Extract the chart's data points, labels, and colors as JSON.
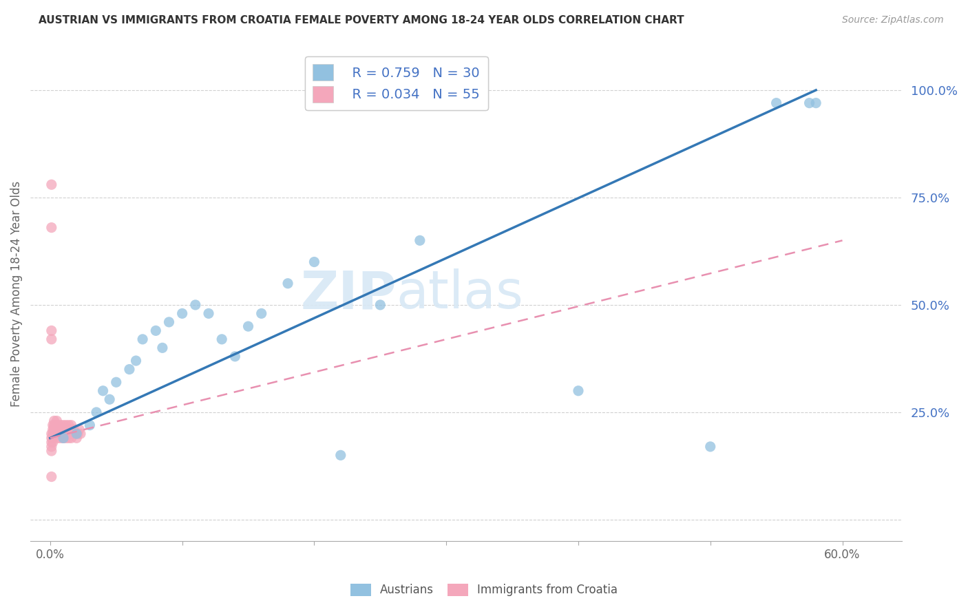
{
  "title": "AUSTRIAN VS IMMIGRANTS FROM CROATIA FEMALE POVERTY AMONG 18-24 YEAR OLDS CORRELATION CHART",
  "source": "Source: ZipAtlas.com",
  "ylabel": "Female Poverty Among 18-24 Year Olds",
  "right_yticks": [
    0.0,
    0.25,
    0.5,
    0.75,
    1.0
  ],
  "right_yticklabels": [
    "",
    "25.0%",
    "50.0%",
    "75.0%",
    "100.0%"
  ],
  "xtick_positions": [
    0.0,
    0.1,
    0.2,
    0.3,
    0.4,
    0.5,
    0.6
  ],
  "xticklabels": [
    "0.0%",
    "",
    "",
    "",
    "",
    "",
    "60.0%"
  ],
  "xlim": [
    -0.015,
    0.645
  ],
  "ylim": [
    -0.05,
    1.1
  ],
  "watermark": "ZIPatlas",
  "legend_r1": "R = 0.759",
  "legend_n1": "N = 30",
  "legend_r2": "R = 0.034",
  "legend_n2": "N = 55",
  "blue_dot_color": "#92c1e0",
  "pink_dot_color": "#f4a7bb",
  "blue_line_color": "#3478b5",
  "pink_line_color": "#e890b0",
  "grid_color": "#d0d0d0",
  "title_color": "#333333",
  "source_color": "#999999",
  "axis_label_color": "#666666",
  "right_axis_color": "#4472C4",
  "bottom_legend_color": "#555555",
  "legend1_label": "Austrians",
  "legend2_label": "Immigrants from Croatia",
  "austrians_x": [
    0.01,
    0.02,
    0.03,
    0.035,
    0.04,
    0.045,
    0.05,
    0.06,
    0.065,
    0.07,
    0.08,
    0.085,
    0.09,
    0.1,
    0.11,
    0.12,
    0.13,
    0.14,
    0.15,
    0.16,
    0.18,
    0.2,
    0.22,
    0.25,
    0.28,
    0.4,
    0.5,
    0.55,
    0.575,
    0.58
  ],
  "austrians_y": [
    0.19,
    0.2,
    0.22,
    0.25,
    0.3,
    0.28,
    0.32,
    0.35,
    0.37,
    0.42,
    0.44,
    0.4,
    0.46,
    0.48,
    0.5,
    0.48,
    0.42,
    0.38,
    0.45,
    0.48,
    0.55,
    0.6,
    0.15,
    0.5,
    0.65,
    0.3,
    0.17,
    0.97,
    0.97,
    0.97
  ],
  "croatians_x": [
    0.001,
    0.001,
    0.001,
    0.001,
    0.001,
    0.002,
    0.002,
    0.002,
    0.002,
    0.002,
    0.003,
    0.003,
    0.003,
    0.003,
    0.004,
    0.004,
    0.004,
    0.005,
    0.005,
    0.005,
    0.006,
    0.006,
    0.006,
    0.007,
    0.007,
    0.008,
    0.008,
    0.009,
    0.009,
    0.01,
    0.01,
    0.011,
    0.011,
    0.012,
    0.012,
    0.013,
    0.013,
    0.014,
    0.014,
    0.015,
    0.015,
    0.016,
    0.016,
    0.017,
    0.018,
    0.019,
    0.02,
    0.021,
    0.022,
    0.023,
    0.001,
    0.001,
    0.001,
    0.001,
    0.001
  ],
  "croatians_y": [
    0.2,
    0.19,
    0.18,
    0.17,
    0.16,
    0.22,
    0.21,
    0.2,
    0.19,
    0.18,
    0.23,
    0.22,
    0.21,
    0.2,
    0.22,
    0.21,
    0.2,
    0.23,
    0.22,
    0.21,
    0.2,
    0.22,
    0.19,
    0.21,
    0.2,
    0.22,
    0.19,
    0.21,
    0.2,
    0.22,
    0.19,
    0.21,
    0.2,
    0.22,
    0.19,
    0.21,
    0.2,
    0.22,
    0.19,
    0.21,
    0.2,
    0.22,
    0.19,
    0.2,
    0.21,
    0.2,
    0.19,
    0.2,
    0.21,
    0.2,
    0.78,
    0.68,
    0.44,
    0.42,
    0.1
  ],
  "blue_line_x0": 0.0,
  "blue_line_y0": 0.19,
  "blue_line_x1": 0.58,
  "blue_line_y1": 1.0,
  "pink_line_x0": 0.0,
  "pink_line_y0": 0.19,
  "pink_line_x1": 0.6,
  "pink_line_y1": 0.65
}
